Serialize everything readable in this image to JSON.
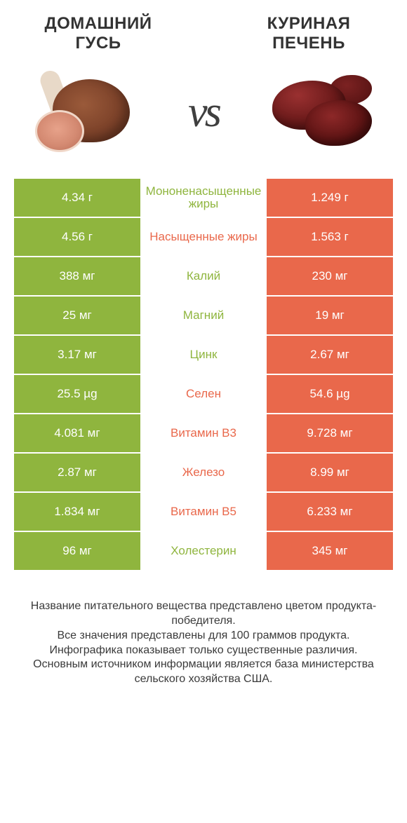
{
  "header": {
    "left": "ДОМАШНИЙ\nГУСЬ",
    "right": "КУРИНАЯ\nПЕЧЕНЬ",
    "vs": "vs"
  },
  "colors": {
    "green": "#8fb53e",
    "orange": "#e9684b",
    "text": "#3a3a3a",
    "bg": "#ffffff"
  },
  "fontsizes": {
    "title": 24,
    "vs": 62,
    "cell": 17,
    "foot": 16
  },
  "rows": [
    {
      "left": "4.34 г",
      "mid": "Мононенасыщенные жиры",
      "right": "1.249 г",
      "winner": "left"
    },
    {
      "left": "4.56 г",
      "mid": "Насыщенные жиры",
      "right": "1.563 г",
      "winner": "right"
    },
    {
      "left": "388 мг",
      "mid": "Калий",
      "right": "230 мг",
      "winner": "left"
    },
    {
      "left": "25 мг",
      "mid": "Магний",
      "right": "19 мг",
      "winner": "left"
    },
    {
      "left": "3.17 мг",
      "mid": "Цинк",
      "right": "2.67 мг",
      "winner": "left"
    },
    {
      "left": "25.5 µg",
      "mid": "Селен",
      "right": "54.6 µg",
      "winner": "right"
    },
    {
      "left": "4.081 мг",
      "mid": "Витамин B3",
      "right": "9.728 мг",
      "winner": "right"
    },
    {
      "left": "2.87 мг",
      "mid": "Железо",
      "right": "8.99 мг",
      "winner": "right"
    },
    {
      "left": "1.834 мг",
      "mid": "Витамин B5",
      "right": "6.233 мг",
      "winner": "right"
    },
    {
      "left": "96 мг",
      "mid": "Холестерин",
      "right": "345 мг",
      "winner": "left"
    }
  ],
  "footnote": "Название питательного вещества представлено цветом продукта-победителя.\nВсе значения представлены для 100 граммов продукта.\nИнфографика показывает только существенные различия.\nОсновным источником информации является база министерства сельского хозяйства США."
}
